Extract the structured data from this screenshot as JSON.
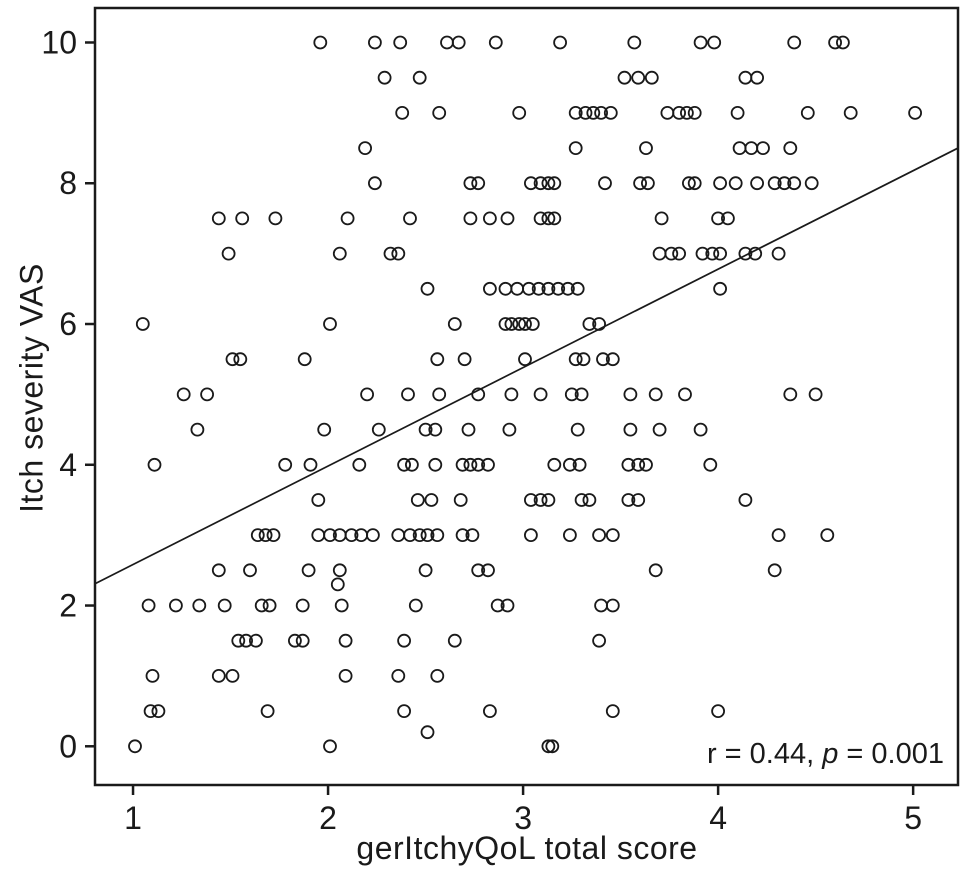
{
  "figure": {
    "background": "#ffffff",
    "foreground": "#1a1a1a"
  },
  "chart_data": {
    "type": "scatter",
    "title": "",
    "xlabel": "gerItchyQoL total score",
    "ylabel": "Itch severity VAS",
    "x_ticks": [
      "1",
      "2",
      "3",
      "4",
      "5"
    ],
    "x_tick_values": [
      1,
      2,
      3,
      4,
      5
    ],
    "y_ticks": [
      "0",
      "2",
      "4",
      "6",
      "8",
      "10"
    ],
    "y_tick_values": [
      0,
      2,
      4,
      6,
      8,
      10
    ],
    "xlim": [
      0.805,
      5.23
    ],
    "ylim": [
      -0.55,
      10.49
    ],
    "grid": false,
    "legend": "none",
    "marker": {
      "shape": "open-circle",
      "radius": 6,
      "color": "#1a1a1a"
    },
    "regression_line": {
      "x1": 0.805,
      "y1": 2.31,
      "x2": 5.23,
      "y2": 8.5
    },
    "annotation": {
      "full_text": "r  = 0.44, p = 0.001",
      "r_symbol": "r",
      "r_rest": "  = 0.44, ",
      "p_symbol": "p",
      "p_rest": " = 0.001",
      "r_value": 0.44,
      "p_value": 0.001
    },
    "points": [
      [
        1.96,
        10
      ],
      [
        2.24,
        10
      ],
      [
        2.37,
        10
      ],
      [
        2.61,
        10
      ],
      [
        2.67,
        10
      ],
      [
        2.86,
        10
      ],
      [
        3.19,
        10
      ],
      [
        3.57,
        10
      ],
      [
        3.91,
        10
      ],
      [
        3.98,
        10
      ],
      [
        4.39,
        10
      ],
      [
        4.6,
        10
      ],
      [
        4.64,
        10
      ],
      [
        2.29,
        9.5
      ],
      [
        2.47,
        9.5
      ],
      [
        3.52,
        9.5
      ],
      [
        3.59,
        9.5
      ],
      [
        3.66,
        9.5
      ],
      [
        4.14,
        9.5
      ],
      [
        4.2,
        9.5
      ],
      [
        2.38,
        9
      ],
      [
        2.57,
        9
      ],
      [
        2.98,
        9
      ],
      [
        3.27,
        9
      ],
      [
        3.32,
        9
      ],
      [
        3.36,
        9
      ],
      [
        3.4,
        9
      ],
      [
        3.45,
        9
      ],
      [
        3.74,
        9
      ],
      [
        3.8,
        9
      ],
      [
        3.84,
        9
      ],
      [
        3.88,
        9
      ],
      [
        4.1,
        9
      ],
      [
        4.46,
        9
      ],
      [
        4.68,
        9
      ],
      [
        5.01,
        9
      ],
      [
        2.19,
        8.5
      ],
      [
        3.27,
        8.5
      ],
      [
        3.63,
        8.5
      ],
      [
        4.11,
        8.5
      ],
      [
        4.17,
        8.5
      ],
      [
        4.23,
        8.5
      ],
      [
        4.37,
        8.5
      ],
      [
        2.24,
        8
      ],
      [
        2.73,
        8
      ],
      [
        2.77,
        8
      ],
      [
        3.04,
        8
      ],
      [
        3.09,
        8
      ],
      [
        3.13,
        8
      ],
      [
        3.16,
        8
      ],
      [
        3.42,
        8
      ],
      [
        3.6,
        8
      ],
      [
        3.64,
        8
      ],
      [
        3.85,
        8
      ],
      [
        3.88,
        8
      ],
      [
        4.01,
        8
      ],
      [
        4.09,
        8
      ],
      [
        4.2,
        8
      ],
      [
        4.29,
        8
      ],
      [
        4.34,
        8
      ],
      [
        4.39,
        8
      ],
      [
        4.48,
        8
      ],
      [
        1.44,
        7.5
      ],
      [
        1.56,
        7.5
      ],
      [
        1.73,
        7.5
      ],
      [
        2.1,
        7.5
      ],
      [
        2.42,
        7.5
      ],
      [
        2.73,
        7.5
      ],
      [
        2.83,
        7.5
      ],
      [
        2.92,
        7.5
      ],
      [
        3.09,
        7.5
      ],
      [
        3.13,
        7.5
      ],
      [
        3.16,
        7.5
      ],
      [
        3.71,
        7.5
      ],
      [
        4.0,
        7.5
      ],
      [
        4.05,
        7.5
      ],
      [
        1.49,
        7
      ],
      [
        2.06,
        7
      ],
      [
        2.32,
        7
      ],
      [
        2.36,
        7
      ],
      [
        3.7,
        7
      ],
      [
        3.76,
        7
      ],
      [
        3.8,
        7
      ],
      [
        3.92,
        7
      ],
      [
        3.97,
        7
      ],
      [
        4.01,
        7
      ],
      [
        4.14,
        7
      ],
      [
        4.19,
        7
      ],
      [
        4.31,
        7
      ],
      [
        2.51,
        6.5
      ],
      [
        2.83,
        6.5
      ],
      [
        2.91,
        6.5
      ],
      [
        2.97,
        6.5
      ],
      [
        3.03,
        6.5
      ],
      [
        3.08,
        6.5
      ],
      [
        3.13,
        6.5
      ],
      [
        3.18,
        6.5
      ],
      [
        3.23,
        6.5
      ],
      [
        3.28,
        6.5
      ],
      [
        4.01,
        6.5
      ],
      [
        1.05,
        6
      ],
      [
        2.01,
        6
      ],
      [
        2.65,
        6
      ],
      [
        2.91,
        6
      ],
      [
        2.94,
        6
      ],
      [
        2.98,
        6
      ],
      [
        3.01,
        6
      ],
      [
        3.05,
        6
      ],
      [
        3.34,
        6
      ],
      [
        3.39,
        6
      ],
      [
        1.51,
        5.5
      ],
      [
        1.55,
        5.5
      ],
      [
        1.88,
        5.5
      ],
      [
        2.56,
        5.5
      ],
      [
        2.7,
        5.5
      ],
      [
        3.01,
        5.5
      ],
      [
        3.27,
        5.5
      ],
      [
        3.31,
        5.5
      ],
      [
        3.41,
        5.5
      ],
      [
        3.46,
        5.5
      ],
      [
        1.26,
        5
      ],
      [
        1.38,
        5
      ],
      [
        2.2,
        5
      ],
      [
        2.41,
        5
      ],
      [
        2.57,
        5
      ],
      [
        2.77,
        5
      ],
      [
        2.94,
        5
      ],
      [
        3.09,
        5
      ],
      [
        3.25,
        5
      ],
      [
        3.3,
        5
      ],
      [
        3.55,
        5
      ],
      [
        3.68,
        5
      ],
      [
        3.83,
        5
      ],
      [
        4.37,
        5
      ],
      [
        4.5,
        5
      ],
      [
        1.33,
        4.5
      ],
      [
        1.98,
        4.5
      ],
      [
        2.26,
        4.5
      ],
      [
        2.5,
        4.5
      ],
      [
        2.55,
        4.5
      ],
      [
        2.72,
        4.5
      ],
      [
        2.93,
        4.5
      ],
      [
        3.28,
        4.5
      ],
      [
        3.55,
        4.5
      ],
      [
        3.7,
        4.5
      ],
      [
        3.91,
        4.5
      ],
      [
        1.11,
        4
      ],
      [
        1.78,
        4
      ],
      [
        1.91,
        4
      ],
      [
        2.16,
        4
      ],
      [
        2.39,
        4
      ],
      [
        2.43,
        4
      ],
      [
        2.55,
        4
      ],
      [
        2.69,
        4
      ],
      [
        2.73,
        4
      ],
      [
        2.77,
        4
      ],
      [
        2.82,
        4
      ],
      [
        3.16,
        4
      ],
      [
        3.24,
        4
      ],
      [
        3.29,
        4
      ],
      [
        3.54,
        4
      ],
      [
        3.59,
        4
      ],
      [
        3.63,
        4
      ],
      [
        3.96,
        4
      ],
      [
        1.95,
        3.5
      ],
      [
        2.46,
        3.5
      ],
      [
        2.53,
        3.5
      ],
      [
        2.68,
        3.5
      ],
      [
        3.04,
        3.5
      ],
      [
        3.09,
        3.5
      ],
      [
        3.13,
        3.5
      ],
      [
        3.3,
        3.5
      ],
      [
        3.34,
        3.5
      ],
      [
        3.54,
        3.5
      ],
      [
        3.59,
        3.5
      ],
      [
        4.14,
        3.5
      ],
      [
        1.64,
        3
      ],
      [
        1.68,
        3
      ],
      [
        1.72,
        3
      ],
      [
        1.95,
        3
      ],
      [
        2.01,
        3
      ],
      [
        2.06,
        3
      ],
      [
        2.12,
        3
      ],
      [
        2.17,
        3
      ],
      [
        2.23,
        3
      ],
      [
        2.36,
        3
      ],
      [
        2.42,
        3
      ],
      [
        2.47,
        3
      ],
      [
        2.51,
        3
      ],
      [
        2.56,
        3
      ],
      [
        2.69,
        3
      ],
      [
        2.74,
        3
      ],
      [
        3.04,
        3
      ],
      [
        3.24,
        3
      ],
      [
        3.39,
        3
      ],
      [
        3.46,
        3
      ],
      [
        4.31,
        3
      ],
      [
        4.56,
        3
      ],
      [
        1.44,
        2.5
      ],
      [
        1.6,
        2.5
      ],
      [
        1.9,
        2.5
      ],
      [
        2.06,
        2.5
      ],
      [
        2.5,
        2.5
      ],
      [
        2.77,
        2.5
      ],
      [
        2.82,
        2.5
      ],
      [
        3.68,
        2.5
      ],
      [
        4.29,
        2.5
      ],
      [
        2.05,
        2.3
      ],
      [
        1.08,
        2
      ],
      [
        1.22,
        2
      ],
      [
        1.34,
        2
      ],
      [
        1.47,
        2
      ],
      [
        1.66,
        2
      ],
      [
        1.7,
        2
      ],
      [
        1.87,
        2
      ],
      [
        2.07,
        2
      ],
      [
        2.45,
        2
      ],
      [
        2.87,
        2
      ],
      [
        2.92,
        2
      ],
      [
        3.4,
        2
      ],
      [
        3.46,
        2
      ],
      [
        1.54,
        1.5
      ],
      [
        1.58,
        1.5
      ],
      [
        1.63,
        1.5
      ],
      [
        1.83,
        1.5
      ],
      [
        1.87,
        1.5
      ],
      [
        2.09,
        1.5
      ],
      [
        2.39,
        1.5
      ],
      [
        2.65,
        1.5
      ],
      [
        3.39,
        1.5
      ],
      [
        1.1,
        1
      ],
      [
        1.44,
        1
      ],
      [
        1.51,
        1
      ],
      [
        2.09,
        1
      ],
      [
        2.36,
        1
      ],
      [
        2.56,
        1
      ],
      [
        1.09,
        0.5
      ],
      [
        1.13,
        0.5
      ],
      [
        1.69,
        0.5
      ],
      [
        2.39,
        0.5
      ],
      [
        2.83,
        0.5
      ],
      [
        3.46,
        0.5
      ],
      [
        4.0,
        0.5
      ],
      [
        2.51,
        0.2
      ],
      [
        1.01,
        0
      ],
      [
        2.01,
        0
      ],
      [
        3.13,
        0
      ],
      [
        3.15,
        0
      ]
    ]
  }
}
